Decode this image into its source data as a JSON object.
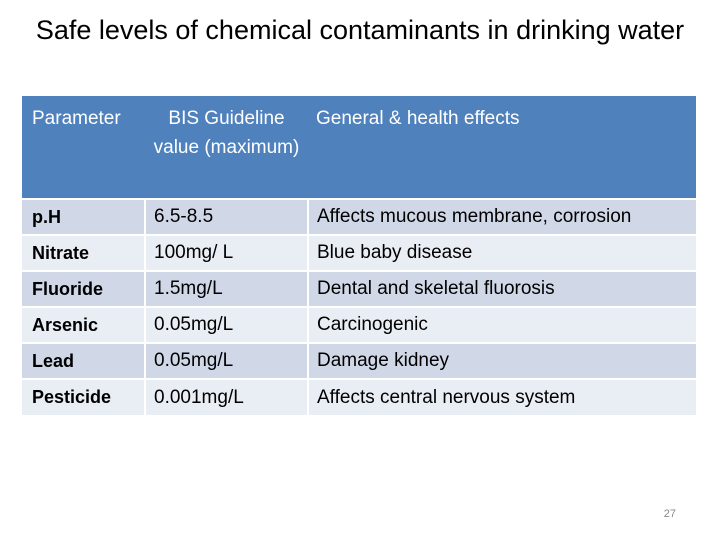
{
  "title": "Safe levels of chemical contaminants in drinking water",
  "table": {
    "headers": [
      "Parameter",
      "BIS Guideline value (maximum)",
      "General & health effects"
    ],
    "rows": [
      {
        "parameter": "p.H",
        "value": "6.5-8.5",
        "effect": "Affects mucous membrane, corrosion"
      },
      {
        "parameter": "Nitrate",
        "value": "100mg/ L",
        "effect": "Blue baby disease"
      },
      {
        "parameter": "Fluoride",
        "value": "1.5mg/L",
        "effect": "Dental and skeletal fluorosis"
      },
      {
        "parameter": "Arsenic",
        "value": "0.05mg/L",
        "effect": "Carcinogenic"
      },
      {
        "parameter": "Lead",
        "value": "0.05mg/L",
        "effect": "Damage kidney"
      },
      {
        "parameter": "Pesticide",
        "value": "0.001mg/L",
        "effect": "Affects central nervous system"
      }
    ]
  },
  "slide_number": "27",
  "colors": {
    "header_bg": "#4f81bd",
    "row_odd": "#d0d8e8",
    "row_even": "#e9edf4"
  }
}
